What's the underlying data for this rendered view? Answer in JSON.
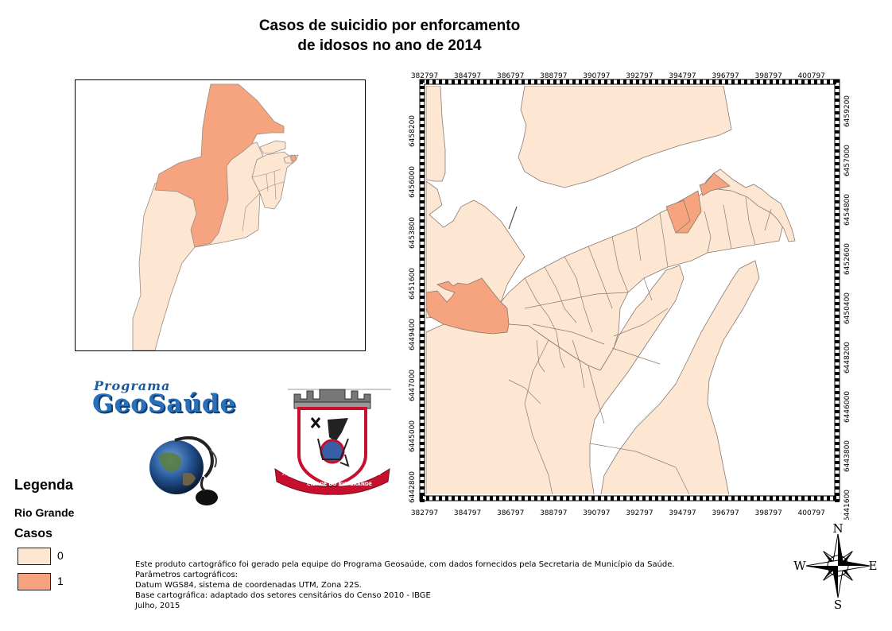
{
  "title_line1": "Casos de suicidio por enforcamento",
  "title_line2": "de idosos no ano de 2014",
  "grid": {
    "x_labels": [
      "382797",
      "384797",
      "386797",
      "388797",
      "390797",
      "392797",
      "394797",
      "396797",
      "398797",
      "400797"
    ],
    "y_left_labels": [
      "6442800",
      "6445000",
      "6447000",
      "6449400",
      "6451600",
      "6453800",
      "6456000",
      "6458200"
    ],
    "y_right_labels": [
      "6441600",
      "6443800",
      "6446000",
      "6448200",
      "6450400",
      "6452600",
      "6454800",
      "6457000",
      "6459200"
    ]
  },
  "logos": {
    "program_word": "Programa",
    "program_name": "GeoSaúde",
    "crest_year_left": "1737",
    "crest_motto": "CIDADE DO RIO GRANDE",
    "crest_year_right": "1835"
  },
  "legend": {
    "title": "Legenda",
    "layer": "Rio Grande",
    "field": "Casos",
    "items": [
      {
        "label": "0",
        "color": "#fde7d3"
      },
      {
        "label": "1",
        "color": "#f6a47f"
      }
    ]
  },
  "colors": {
    "class0": "#fde7d3",
    "class1": "#f6a47f",
    "boundary": "#9a8a80"
  },
  "credits": {
    "line1": "Este produto cartográfico foi gerado pela equipe do Programa Geosaúde, com dados fornecidos pela Secretaria de Município da Saúde.",
    "line2": "Parâmetros cartográficos:",
    "line3": "Datum WGS84, sistema de coordenadas UTM, Zona 22S.",
    "line4": "Base cartográfica: adaptado dos setores censitários do Censo 2010 - IBGE",
    "line5": "Julho, 2015"
  },
  "compass": {
    "n": "N",
    "s": "S",
    "e": "E",
    "w": "W",
    "icon": "compass-rose-icon"
  }
}
